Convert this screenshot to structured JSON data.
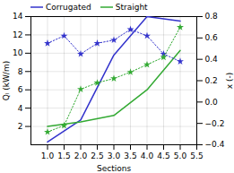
{
  "chart_data": {
    "type": "line",
    "xlabel": "Sections",
    "ylabel": "Qₗ (kW/m)",
    "y2label": "x (-)",
    "xlim": [
      0.5,
      5.5
    ],
    "ylim": [
      0,
      14
    ],
    "y2lim": [
      -0.4,
      0.8
    ],
    "xticks": [
      {
        "value": 1,
        "label": "1.0"
      },
      1.5,
      {
        "value": 2,
        "label": "2.0"
      },
      2.5,
      {
        "value": 3,
        "label": "3.0"
      },
      3.5,
      {
        "value": 4,
        "label": "4.0"
      },
      4.5,
      {
        "value": 5,
        "label": "5.0"
      },
      5.5
    ],
    "yticks": [
      2,
      4,
      6,
      8,
      10,
      12,
      14
    ],
    "y2ticks": [
      {
        "value": -0.4,
        "label": "−0.4"
      },
      {
        "value": -0.2,
        "label": "−0.2"
      },
      {
        "value": 0,
        "label": "0.0"
      },
      0.2,
      0.4,
      0.6,
      0.8
    ],
    "grid": true,
    "legend": "upper left",
    "series": [
      {
        "name": "Corrugated",
        "color": "#3333cc",
        "line_style": "solid",
        "x": [
          1,
          2,
          3,
          4,
          5
        ],
        "values": [
          0.3,
          2.7,
          9.8,
          14.0,
          13.5
        ]
      },
      {
        "name": "Straight",
        "color": "#33aa33",
        "line_style": "solid",
        "x": [
          1,
          2,
          3,
          4,
          5
        ],
        "values": [
          2.0,
          2.5,
          3.2,
          6.0,
          10.3
        ]
      },
      {
        "color": "#3333cc",
        "axis": "y2",
        "line_style": "dotted",
        "marker": "star",
        "x": [
          1,
          1.5,
          2,
          2.5,
          3,
          3.5,
          4,
          4.5,
          5
        ],
        "values": [
          0.55,
          0.62,
          0.45,
          0.55,
          0.58,
          0.68,
          0.62,
          0.45,
          0.38
        ]
      },
      {
        "color": "#33aa33",
        "axis": "y2",
        "line_style": "dotted",
        "marker": "star",
        "x": [
          1,
          1.5,
          2,
          2.5,
          3,
          3.5,
          4,
          4.5,
          5
        ],
        "values": [
          -0.28,
          -0.22,
          0.12,
          0.18,
          0.22,
          0.28,
          0.35,
          0.42,
          0.7
        ]
      }
    ]
  }
}
